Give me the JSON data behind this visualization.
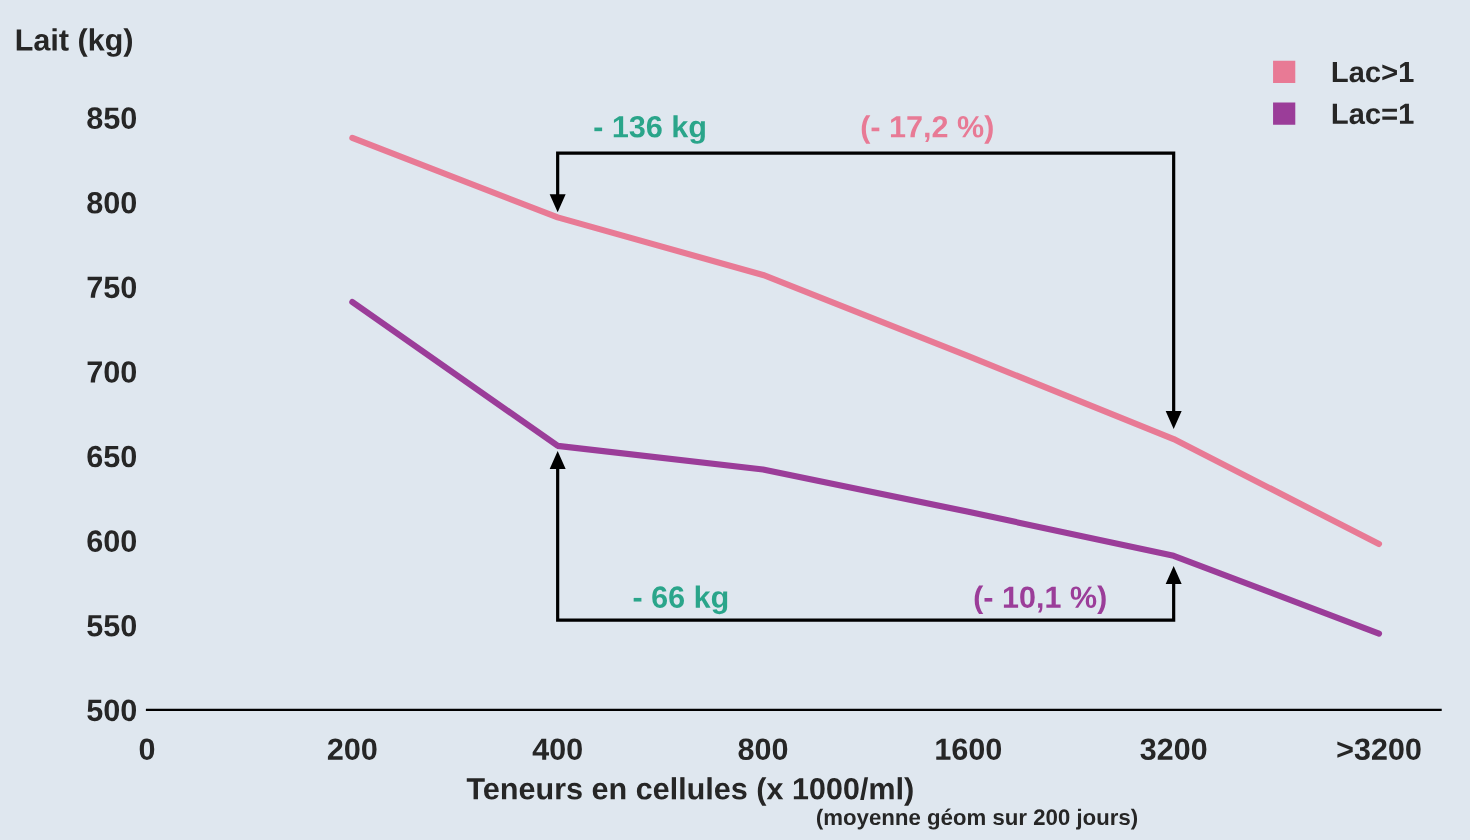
{
  "chart_data": {
    "type": "line",
    "ylabel": "Lait (kg)",
    "xlabel": "Teneurs en cellules (x 1000/ml)",
    "categories": [
      "0",
      "200",
      "400",
      "800",
      "1600",
      "3200",
      ">3200"
    ],
    "ylim": [
      500,
      850
    ],
    "yticks": [
      500,
      550,
      600,
      650,
      700,
      750,
      800,
      850
    ],
    "series": [
      {
        "name": "Lac>1",
        "color": "#e87a95",
        "values": [
          null,
          838,
          791,
          757,
          709,
          660,
          598
        ]
      },
      {
        "name": "Lac=1",
        "color": "#9b3d99",
        "values": [
          null,
          741,
          656,
          642,
          617,
          591,
          545
        ]
      }
    ],
    "annotations": [
      "- 136 kg",
      "(- 17,2 %)",
      "- 66 kg",
      "(- 10,1 %)",
      "(moyenne géom sur 200 jours)"
    ],
    "legend": "top right",
    "grid": false,
    "marker": "none",
    "line_style": "solid"
  }
}
